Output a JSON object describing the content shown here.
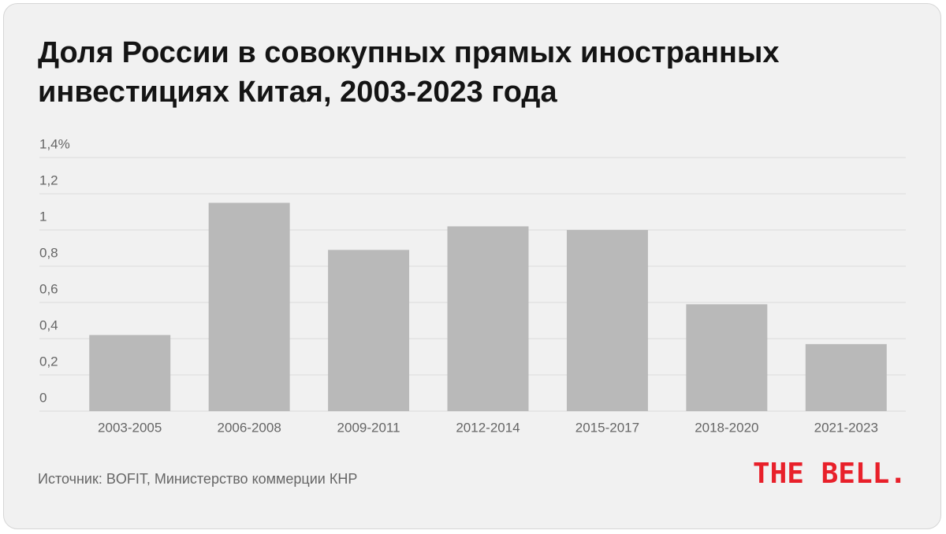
{
  "chart_data": {
    "type": "bar",
    "title": "Доля России в совокупных прямых иностранных инвестициях Китая, 2003-2023 года",
    "categories": [
      "2003-2005",
      "2006-2008",
      "2009-2011",
      "2012-2014",
      "2015-2017",
      "2018-2020",
      "2021-2023"
    ],
    "values": [
      0.42,
      1.15,
      0.89,
      1.02,
      1.0,
      0.59,
      0.37
    ],
    "color": "#b9b9b9",
    "ylim": [
      0,
      1.4
    ],
    "yticks": [
      0,
      {
        "value": 0.2,
        "label": "0,2"
      },
      {
        "value": 0.4,
        "label": "0,4"
      },
      {
        "value": 0.6,
        "label": "0,6"
      },
      {
        "value": 0.8,
        "label": "0,8"
      },
      1,
      {
        "value": 1.2,
        "label": "1,2"
      },
      {
        "value": 1.4,
        "label": "1,4%"
      }
    ],
    "grid": true,
    "source": "Источник: BOFIT, Министерство коммерции КНР",
    "logo": "THE BELL."
  }
}
